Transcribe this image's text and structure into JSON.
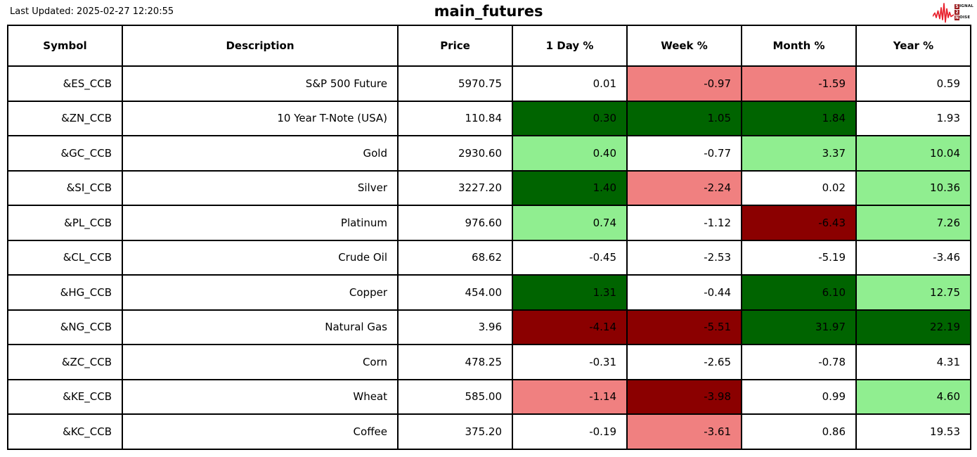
{
  "header": {
    "last_updated": "Last Updated: 2025-02-27 12:20:55",
    "title": "main_futures"
  },
  "logo": {
    "line1_initial": "S",
    "line1_rest": "IGNAL",
    "line2_initial": "2",
    "line2_rest": "",
    "line3_initial": "N",
    "line3_rest": "OISE"
  },
  "colors": {
    "up_strong": "#006400",
    "up_mild": "#90EE90",
    "down_strong": "#8B0000",
    "down_mild": "#F08080",
    "neutral": "#FFFFFF",
    "border": "#000000",
    "logo_wave": "#E8212D",
    "logo_box": "#9B1B1E"
  },
  "chart_data": {
    "type": "table",
    "title": "main_futures",
    "last_updated": "2025-02-27 12:20:55",
    "columns": [
      "Symbol",
      "Description",
      "Price",
      "1 Day %",
      "Week %",
      "Month %",
      "Year %"
    ],
    "rows": [
      {
        "symbol": "&ES_CCB",
        "description": "S&P 500 Future",
        "price": "5970.75",
        "day": {
          "value": "0.01",
          "tone": "neutral"
        },
        "week": {
          "value": "-0.97",
          "tone": "down_mild"
        },
        "month": {
          "value": "-1.59",
          "tone": "down_mild"
        },
        "year": {
          "value": "0.59",
          "tone": "neutral"
        }
      },
      {
        "symbol": "&ZN_CCB",
        "description": "10 Year T-Note (USA)",
        "price": "110.84",
        "day": {
          "value": "0.30",
          "tone": "up_strong"
        },
        "week": {
          "value": "1.05",
          "tone": "up_strong"
        },
        "month": {
          "value": "1.84",
          "tone": "up_strong"
        },
        "year": {
          "value": "1.93",
          "tone": "neutral"
        }
      },
      {
        "symbol": "&GC_CCB",
        "description": "Gold",
        "price": "2930.60",
        "day": {
          "value": "0.40",
          "tone": "up_mild"
        },
        "week": {
          "value": "-0.77",
          "tone": "neutral"
        },
        "month": {
          "value": "3.37",
          "tone": "up_mild"
        },
        "year": {
          "value": "10.04",
          "tone": "up_mild"
        }
      },
      {
        "symbol": "&SI_CCB",
        "description": "Silver",
        "price": "3227.20",
        "day": {
          "value": "1.40",
          "tone": "up_strong"
        },
        "week": {
          "value": "-2.24",
          "tone": "down_mild"
        },
        "month": {
          "value": "0.02",
          "tone": "neutral"
        },
        "year": {
          "value": "10.36",
          "tone": "up_mild"
        }
      },
      {
        "symbol": "&PL_CCB",
        "description": "Platinum",
        "price": "976.60",
        "day": {
          "value": "0.74",
          "tone": "up_mild"
        },
        "week": {
          "value": "-1.12",
          "tone": "neutral"
        },
        "month": {
          "value": "-6.43",
          "tone": "down_strong"
        },
        "year": {
          "value": "7.26",
          "tone": "up_mild"
        }
      },
      {
        "symbol": "&CL_CCB",
        "description": "Crude Oil",
        "price": "68.62",
        "day": {
          "value": "-0.45",
          "tone": "neutral"
        },
        "week": {
          "value": "-2.53",
          "tone": "neutral"
        },
        "month": {
          "value": "-5.19",
          "tone": "neutral"
        },
        "year": {
          "value": "-3.46",
          "tone": "neutral"
        }
      },
      {
        "symbol": "&HG_CCB",
        "description": "Copper",
        "price": "454.00",
        "day": {
          "value": "1.31",
          "tone": "up_strong"
        },
        "week": {
          "value": "-0.44",
          "tone": "neutral"
        },
        "month": {
          "value": "6.10",
          "tone": "up_strong"
        },
        "year": {
          "value": "12.75",
          "tone": "up_mild"
        }
      },
      {
        "symbol": "&NG_CCB",
        "description": "Natural Gas",
        "price": "3.96",
        "day": {
          "value": "-4.14",
          "tone": "down_strong"
        },
        "week": {
          "value": "-5.51",
          "tone": "down_strong"
        },
        "month": {
          "value": "31.97",
          "tone": "up_strong"
        },
        "year": {
          "value": "22.19",
          "tone": "up_strong"
        }
      },
      {
        "symbol": "&ZC_CCB",
        "description": "Corn",
        "price": "478.25",
        "day": {
          "value": "-0.31",
          "tone": "neutral"
        },
        "week": {
          "value": "-2.65",
          "tone": "neutral"
        },
        "month": {
          "value": "-0.78",
          "tone": "neutral"
        },
        "year": {
          "value": "4.31",
          "tone": "neutral"
        }
      },
      {
        "symbol": "&KE_CCB",
        "description": "Wheat",
        "price": "585.00",
        "day": {
          "value": "-1.14",
          "tone": "down_mild"
        },
        "week": {
          "value": "-3.98",
          "tone": "down_strong"
        },
        "month": {
          "value": "0.99",
          "tone": "neutral"
        },
        "year": {
          "value": "4.60",
          "tone": "up_mild"
        }
      },
      {
        "symbol": "&KC_CCB",
        "description": "Coffee",
        "price": "375.20",
        "day": {
          "value": "-0.19",
          "tone": "neutral"
        },
        "week": {
          "value": "-3.61",
          "tone": "down_mild"
        },
        "month": {
          "value": "0.86",
          "tone": "neutral"
        },
        "year": {
          "value": "19.53",
          "tone": "neutral"
        }
      }
    ]
  }
}
